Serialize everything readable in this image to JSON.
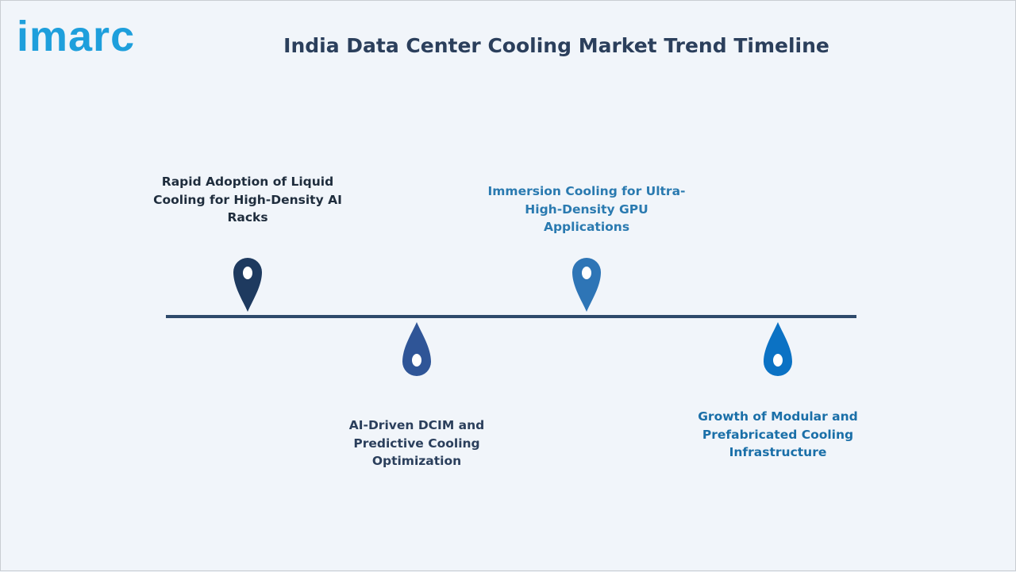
{
  "header": {
    "logo": "imarc",
    "title": "India Data Center Cooling Market Trend Timeline"
  },
  "timeline": {
    "items": [
      {
        "label": "Rapid Adoption of Liquid Cooling for High-Density AI Racks"
      },
      {
        "label": "AI-Driven DCIM and Predictive Cooling Optimization"
      },
      {
        "label": "Immersion Cooling for Ultra-High-Density GPU Applications"
      },
      {
        "label": "Growth of Modular and Prefabricated Cooling Infrastructure"
      }
    ]
  }
}
